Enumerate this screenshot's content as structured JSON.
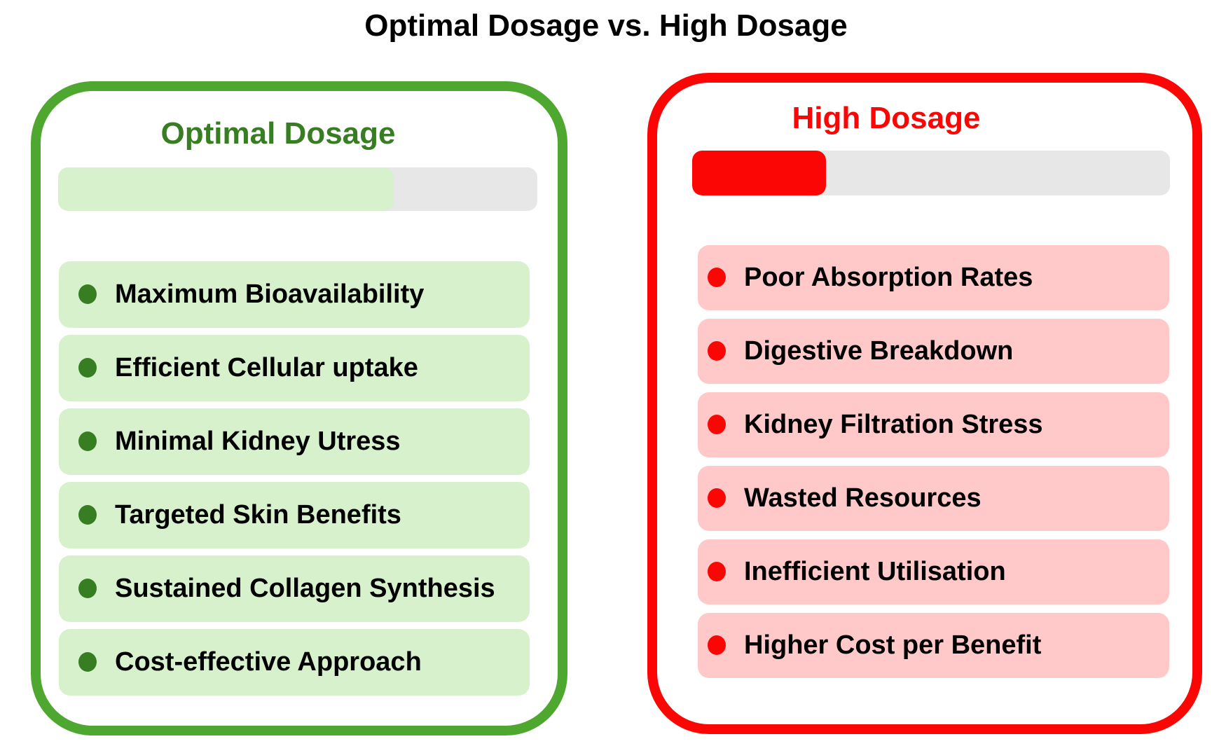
{
  "title": "Optimal Dosage vs. High Dosage",
  "colors": {
    "green": "#4EA72E",
    "green_dark": "#377D22",
    "green_light": "#D6F1CC",
    "red": "#FB0505",
    "red_light": "#FFC9C9",
    "gray": "#E7E7E7",
    "text": "#000000"
  },
  "panels": {
    "optimal": {
      "title": "Optimal Dosage",
      "progress_percent": 70,
      "items": [
        "Maximum Bioavailability",
        "Efficient Cellular uptake",
        "Minimal Kidney Utress",
        "Targeted Skin Benefits",
        "Sustained Collagen Synthesis",
        "Cost-effective Approach"
      ]
    },
    "high": {
      "title": "High Dosage",
      "progress_percent": 28,
      "items": [
        "Poor Absorption Rates",
        "Digestive Breakdown",
        "Kidney Filtration Stress",
        "Wasted Resources",
        "Inefficient Utilisation",
        "Higher Cost per Benefit"
      ]
    }
  }
}
